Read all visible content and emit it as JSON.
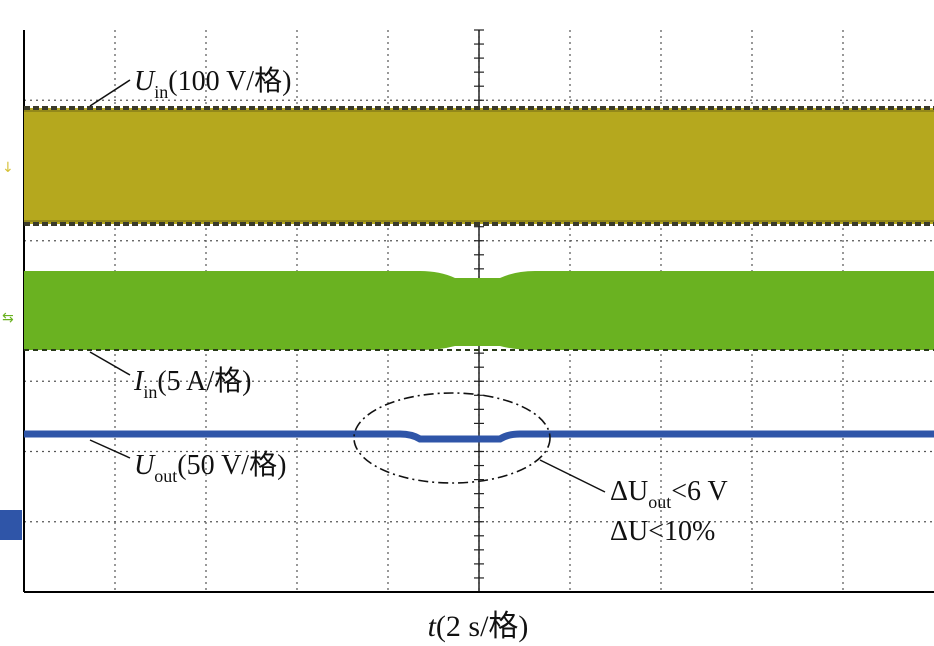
{
  "chart_data": {
    "type": "line",
    "grid": true,
    "grid_divisions": {
      "x": 10,
      "y": 8
    },
    "traces": [
      {
        "key": "u_in",
        "symbol": "U",
        "sub": "in",
        "scale": "(100 V/格)",
        "color": "#b5a81e",
        "edge_color": "#3a3a2a"
      },
      {
        "key": "i_in",
        "symbol": "I",
        "sub": "in",
        "scale": "(5 A/格)",
        "color": "#6ab221",
        "edge_color": "#2a3a1a"
      },
      {
        "key": "u_out",
        "symbol": "U",
        "sub": "out",
        "scale": "(50 V/格)",
        "color": "#2f55a8",
        "edge_color": "#1e3a80"
      }
    ],
    "annotation": {
      "line1": {
        "prefix": "ΔU",
        "sub": "out",
        "suffix": "<6 V"
      },
      "line2": "ΔU<10%"
    },
    "xlabel": {
      "symbol": "t",
      "scale": "(2 s/格)"
    }
  }
}
